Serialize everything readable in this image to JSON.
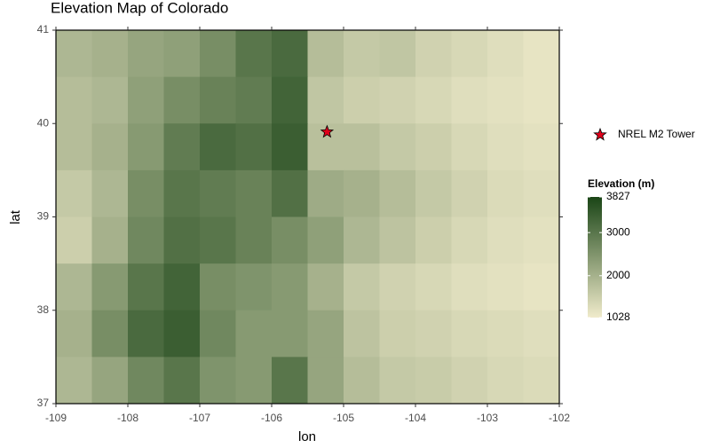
{
  "chart_data": {
    "type": "heatmap",
    "title": "Elevation Map of Colorado",
    "x_label": "lon",
    "y_label": "lat",
    "x": [
      -108.75,
      -108.25,
      -107.75,
      -107.25,
      -106.75,
      -106.25,
      -105.75,
      -105.25,
      -104.75,
      -104.25,
      -103.75,
      -103.25,
      -102.75,
      -102.25
    ],
    "y": [
      40.75,
      40.25,
      39.75,
      39.25,
      38.75,
      38.25,
      37.75,
      37.25
    ],
    "z": [
      [
        1900,
        2000,
        2200,
        2300,
        2600,
        3000,
        3200,
        1800,
        1600,
        1650,
        1450,
        1350,
        1250,
        1150
      ],
      [
        1800,
        1900,
        2300,
        2600,
        2800,
        2900,
        3300,
        1650,
        1500,
        1450,
        1350,
        1250,
        1200,
        1150
      ],
      [
        1800,
        2000,
        2400,
        2900,
        3200,
        3100,
        3400,
        1750,
        1750,
        1600,
        1500,
        1350,
        1250,
        1200
      ],
      [
        1600,
        1900,
        2600,
        3000,
        2900,
        2800,
        3100,
        2100,
        2000,
        1800,
        1600,
        1450,
        1300,
        1250
      ],
      [
        1500,
        2000,
        2700,
        3100,
        3000,
        2800,
        2600,
        2300,
        1900,
        1700,
        1500,
        1350,
        1250,
        1200
      ],
      [
        1900,
        2400,
        3000,
        3300,
        2600,
        2500,
        2400,
        2000,
        1600,
        1450,
        1350,
        1250,
        1200,
        1150
      ],
      [
        2000,
        2600,
        3200,
        3400,
        2700,
        2400,
        2400,
        2200,
        1700,
        1500,
        1450,
        1350,
        1300,
        1250
      ],
      [
        1900,
        2200,
        2700,
        3000,
        2500,
        2400,
        3000,
        2200,
        1800,
        1600,
        1550,
        1450,
        1350,
        1300
      ]
    ],
    "xlim": [
      -109,
      -102
    ],
    "xticks": [
      -109,
      -108,
      -107,
      -106,
      -105,
      -104,
      -103,
      -102
    ],
    "ylim": [
      37,
      41
    ],
    "yticks": [
      37,
      38,
      39,
      40,
      41
    ],
    "colorbar": {
      "title": "Elevation (m)",
      "zlim": [
        1028,
        3827
      ],
      "zticks": [
        1028,
        2000,
        3000,
        3827
      ],
      "colors": [
        "#f0ebcb",
        "#1a4516"
      ]
    },
    "points": [
      {
        "name": "NREL M2 Tower",
        "x": -105.23,
        "y": 39.91,
        "color": "#e0001b"
      }
    ]
  }
}
